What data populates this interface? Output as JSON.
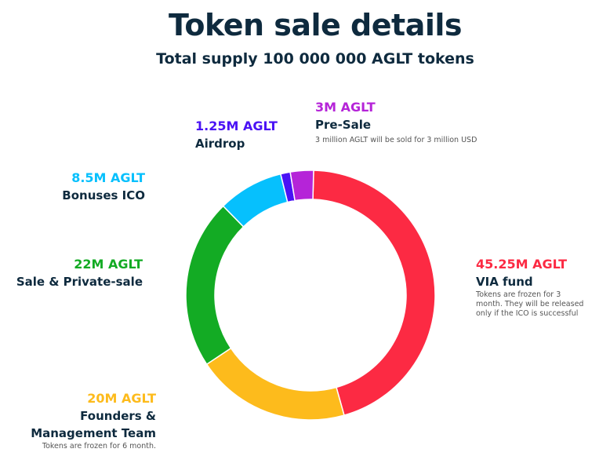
{
  "chart_data": {
    "type": "pie",
    "title": "Token sale details",
    "subtitle": "Total supply 100 000 000 AGLT tokens",
    "unit": "M AGLT",
    "slices": [
      {
        "name": "VIA fund",
        "label": "45.25M AGLT",
        "value": 45.25,
        "color": "#fc2a43",
        "note": [
          "Tokens are frozen for 3",
          "month. They will be released",
          "only if the ICO is successful"
        ]
      },
      {
        "name": "Founders & Management Team",
        "label": "20M AGLT",
        "value": 20,
        "color": "#fdbb1c",
        "note": [
          "Tokens are frozen for 6 month."
        ]
      },
      {
        "name": "Sale & Private-sale",
        "label": "22M AGLT",
        "value": 22,
        "color": "#13ab24",
        "note": []
      },
      {
        "name": "Bonuses ICO",
        "label": "8.5M AGLT",
        "value": 8.5,
        "color": "#06c0fd",
        "note": []
      },
      {
        "name": "Airdrop",
        "label": "1.25M AGLT",
        "value": 1.25,
        "color": "#4a12f5",
        "note": []
      },
      {
        "name": "Pre-Sale",
        "label": "3M AGLT",
        "value": 3,
        "color": "#b524d8",
        "note": [
          "3 million AGLT will be sold for 3 million USD"
        ]
      }
    ]
  },
  "labels": {
    "via_value": "45.25M AGLT",
    "via_name": "VIA fund",
    "via_note_1": "Tokens are frozen for 3",
    "via_note_2": "month. They will be released",
    "via_note_3": "only if the ICO is successful",
    "founders_value": "20M AGLT",
    "founders_name_1": "Founders &",
    "founders_name_2": "Management Team",
    "founders_note": "Tokens are frozen for 6 month.",
    "sale_value": "22M AGLT",
    "sale_name": "Sale & Private-sale",
    "bonus_value": "8.5M AGLT",
    "bonus_name": "Bonuses ICO",
    "airdrop_value": "1.25M AGLT",
    "airdrop_name": "Airdrop",
    "presale_value": "3M AGLT",
    "presale_name": "Pre-Sale",
    "presale_note": "3 million AGLT will be sold for 3 million USD"
  }
}
